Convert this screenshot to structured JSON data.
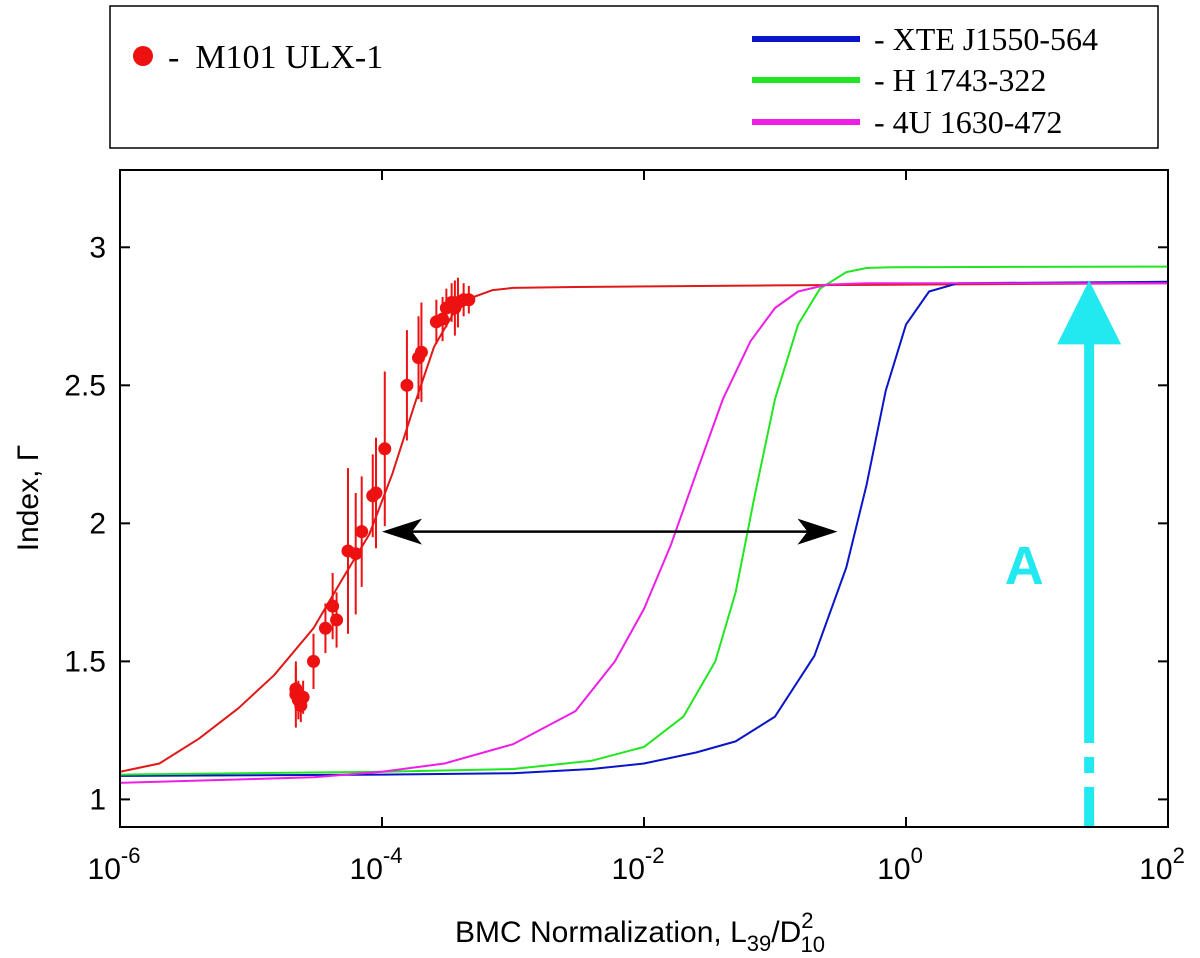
{
  "chart_data": {
    "type": "line",
    "xscale": "log",
    "xlim": [
      1e-06,
      100
    ],
    "ylim": [
      0.9,
      3.28
    ],
    "xlabel": {
      "prefix": "BMC Normalization, L",
      "sub1": "39",
      "slash": "/D",
      "sup": "2",
      "sub2": "10"
    },
    "ylabel": "Index, Γ",
    "xticks": [
      {
        "value": 1e-06,
        "base": "10",
        "exp": "-6"
      },
      {
        "value": 0.0001,
        "base": "10",
        "exp": "-4"
      },
      {
        "value": 0.01,
        "base": "10",
        "exp": "-2"
      },
      {
        "value": 1,
        "base": "10",
        "exp": "0"
      },
      {
        "value": 100,
        "base": "10",
        "exp": "2"
      }
    ],
    "yticks": [
      {
        "value": 1,
        "label": "1"
      },
      {
        "value": 1.5,
        "label": "1.5"
      },
      {
        "value": 2,
        "label": "2"
      },
      {
        "value": 2.5,
        "label": "2.5"
      },
      {
        "value": 3,
        "label": "3"
      }
    ],
    "legend": [
      {
        "marker": "dot",
        "dash": "-",
        "label": "M101 ULX-1",
        "color": "#ee1111"
      },
      {
        "marker": "line",
        "dash": "- ",
        "label": "XTE J1550-564",
        "color": "#0a14c8"
      },
      {
        "marker": "line",
        "dash": "- ",
        "label": "H 1743-322",
        "color": "#22e622"
      },
      {
        "marker": "line",
        "dash": "- ",
        "label": "4U 1630-472",
        "color": "#ee1ee6"
      }
    ],
    "series": [
      {
        "name": "M101 ULX-1 fit",
        "color": "#e01818",
        "points": [
          [
            1e-06,
            1.1
          ],
          [
            2e-06,
            1.13
          ],
          [
            4e-06,
            1.22
          ],
          [
            8e-06,
            1.33
          ],
          [
            1.5e-05,
            1.45
          ],
          [
            3e-05,
            1.62
          ],
          [
            5e-05,
            1.8
          ],
          [
            8e-05,
            1.96
          ],
          [
            0.00012,
            2.18
          ],
          [
            0.00018,
            2.44
          ],
          [
            0.00025,
            2.64
          ],
          [
            0.00035,
            2.76
          ],
          [
            0.0005,
            2.82
          ],
          [
            0.0007,
            2.845
          ],
          [
            0.001,
            2.853
          ],
          [
            0.003,
            2.856
          ],
          [
            0.1,
            2.862
          ],
          [
            100,
            2.87
          ]
        ]
      },
      {
        "name": "XTE J1550-564",
        "color": "#0a14c8",
        "points": [
          [
            1e-06,
            1.085
          ],
          [
            0.0001,
            1.09
          ],
          [
            0.001,
            1.095
          ],
          [
            0.004,
            1.11
          ],
          [
            0.01,
            1.13
          ],
          [
            0.025,
            1.17
          ],
          [
            0.05,
            1.21
          ],
          [
            0.1,
            1.3
          ],
          [
            0.2,
            1.52
          ],
          [
            0.35,
            1.84
          ],
          [
            0.5,
            2.14
          ],
          [
            0.7,
            2.48
          ],
          [
            1.0,
            2.72
          ],
          [
            1.5,
            2.84
          ],
          [
            2.5,
            2.87
          ],
          [
            100,
            2.875
          ]
        ]
      },
      {
        "name": "H 1743-322",
        "color": "#22e622",
        "points": [
          [
            1e-06,
            1.09
          ],
          [
            0.0001,
            1.1
          ],
          [
            0.001,
            1.11
          ],
          [
            0.004,
            1.14
          ],
          [
            0.01,
            1.19
          ],
          [
            0.02,
            1.3
          ],
          [
            0.035,
            1.5
          ],
          [
            0.05,
            1.75
          ],
          [
            0.07,
            2.1
          ],
          [
            0.1,
            2.45
          ],
          [
            0.15,
            2.72
          ],
          [
            0.22,
            2.85
          ],
          [
            0.35,
            2.91
          ],
          [
            0.5,
            2.925
          ],
          [
            0.8,
            2.928
          ],
          [
            100,
            2.93
          ]
        ]
      },
      {
        "name": "4U 1630-472",
        "color": "#ee1ee6",
        "points": [
          [
            1e-06,
            1.06
          ],
          [
            3e-05,
            1.08
          ],
          [
            0.0001,
            1.1
          ],
          [
            0.0003,
            1.13
          ],
          [
            0.001,
            1.2
          ],
          [
            0.003,
            1.32
          ],
          [
            0.006,
            1.5
          ],
          [
            0.01,
            1.69
          ],
          [
            0.016,
            1.92
          ],
          [
            0.025,
            2.18
          ],
          [
            0.04,
            2.45
          ],
          [
            0.065,
            2.66
          ],
          [
            0.1,
            2.78
          ],
          [
            0.15,
            2.84
          ],
          [
            0.25,
            2.865
          ],
          [
            0.5,
            2.87
          ],
          [
            100,
            2.87
          ]
        ]
      }
    ],
    "points": {
      "name": "M101 ULX-1",
      "color": "#ee1111",
      "data": [
        [
          2.2e-05,
          1.38,
          0.12
        ],
        [
          2.2e-05,
          1.4,
          0.08
        ],
        [
          2.3e-05,
          1.36,
          0.07
        ],
        [
          2.4e-05,
          1.34,
          0.06
        ],
        [
          2.5e-05,
          1.37,
          0.06
        ],
        [
          3e-05,
          1.5,
          0.1
        ],
        [
          3.7e-05,
          1.62,
          0.09
        ],
        [
          4.2e-05,
          1.7,
          0.12
        ],
        [
          4.5e-05,
          1.65,
          0.1
        ],
        [
          5.5e-05,
          1.9,
          0.3
        ],
        [
          6.3e-05,
          1.89,
          0.22
        ],
        [
          7e-05,
          1.97,
          0.2
        ],
        [
          8.5e-05,
          2.1,
          0.15
        ],
        [
          9e-05,
          2.11,
          0.2
        ],
        [
          0.000105,
          2.27,
          0.28
        ],
        [
          0.000155,
          2.5,
          0.2
        ],
        [
          0.00019,
          2.6,
          0.15
        ],
        [
          0.0002,
          2.62,
          0.18
        ],
        [
          0.00026,
          2.73,
          0.08
        ],
        [
          0.00029,
          2.74,
          0.08
        ],
        [
          0.00031,
          2.78,
          0.07
        ],
        [
          0.00034,
          2.8,
          0.07
        ],
        [
          0.00036,
          2.78,
          0.1
        ],
        [
          0.00038,
          2.8,
          0.09
        ],
        [
          0.00042,
          2.81,
          0.06
        ],
        [
          0.00046,
          2.81,
          0.05
        ]
      ]
    },
    "annotations": {
      "double_arrow": {
        "x_from": 0.0001,
        "x_to": 0.3,
        "y": 1.97,
        "color": "#000000"
      },
      "vertical_arrow": {
        "x": 25,
        "y_from": 0.9,
        "y_to": 2.88,
        "color": "#22e8f0"
      },
      "label_A": {
        "text": "A",
        "x": 8,
        "y": 1.78,
        "color": "#22e8f0"
      }
    }
  }
}
